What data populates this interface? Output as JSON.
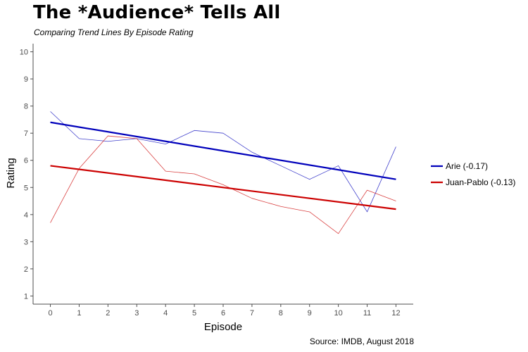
{
  "chart_data": {
    "type": "line",
    "title": "The *Audience* Tells All",
    "subtitle": "Comparing Trend Lines By Episode Rating",
    "caption": "Source: IMDB, August 2018",
    "xlabel": "Episode",
    "ylabel": "Rating",
    "x": [
      0,
      1,
      2,
      3,
      4,
      5,
      6,
      7,
      8,
      9,
      10,
      11,
      12
    ],
    "xlim": [
      -0.6,
      12.6
    ],
    "ylim": [
      0.7,
      10.3
    ],
    "x_ticks": [
      "0",
      "1",
      "2",
      "3",
      "4",
      "5",
      "6",
      "7",
      "8",
      "9",
      "10",
      "11",
      "12"
    ],
    "y_ticks": [
      "1",
      "2",
      "3",
      "4",
      "5",
      "6",
      "7",
      "8",
      "9",
      "10"
    ],
    "grid": false,
    "legend_position": "right",
    "series": [
      {
        "name": "Arie (-0.17)",
        "color": "#0000bb",
        "values": [
          7.8,
          6.8,
          6.7,
          6.8,
          6.6,
          7.1,
          7.0,
          6.3,
          5.8,
          5.3,
          5.8,
          4.1,
          6.5
        ],
        "trend": [
          7.4,
          5.3
        ]
      },
      {
        "name": "Juan-Pablo (-0.13)",
        "color": "#cc0000",
        "values": [
          3.7,
          5.7,
          6.9,
          6.8,
          5.6,
          5.5,
          5.1,
          4.6,
          4.3,
          4.1,
          3.3,
          4.9,
          4.5
        ],
        "trend": [
          5.8,
          4.2
        ]
      }
    ]
  }
}
